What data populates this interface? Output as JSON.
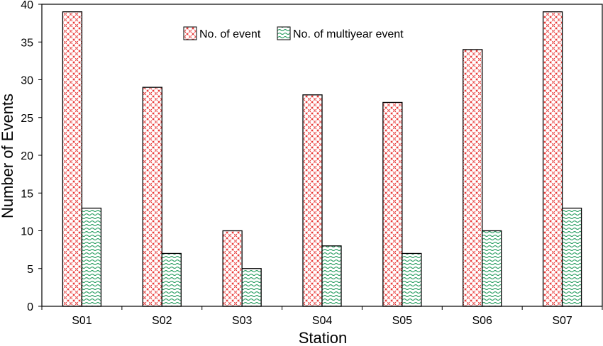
{
  "chart_data": {
    "type": "bar",
    "title": "",
    "xlabel": "Station",
    "ylabel": "Number of Events",
    "ylim": [
      0,
      40
    ],
    "yticks": [
      0,
      5,
      10,
      15,
      20,
      25,
      30,
      35,
      40
    ],
    "categories": [
      "S01",
      "S02",
      "S03",
      "S04",
      "S05",
      "S06",
      "S07"
    ],
    "series": [
      {
        "name": "No. of event",
        "values": [
          39,
          29,
          10,
          28,
          27,
          34,
          39
        ],
        "color": "#e8302e",
        "pattern": "crosshatch-red"
      },
      {
        "name": "No. of multiyear event",
        "values": [
          13,
          7,
          5,
          8,
          7,
          10,
          13
        ],
        "color": "#1f9a5a",
        "pattern": "wave-green"
      }
    ],
    "legend_position": "top-center",
    "grid": false
  }
}
